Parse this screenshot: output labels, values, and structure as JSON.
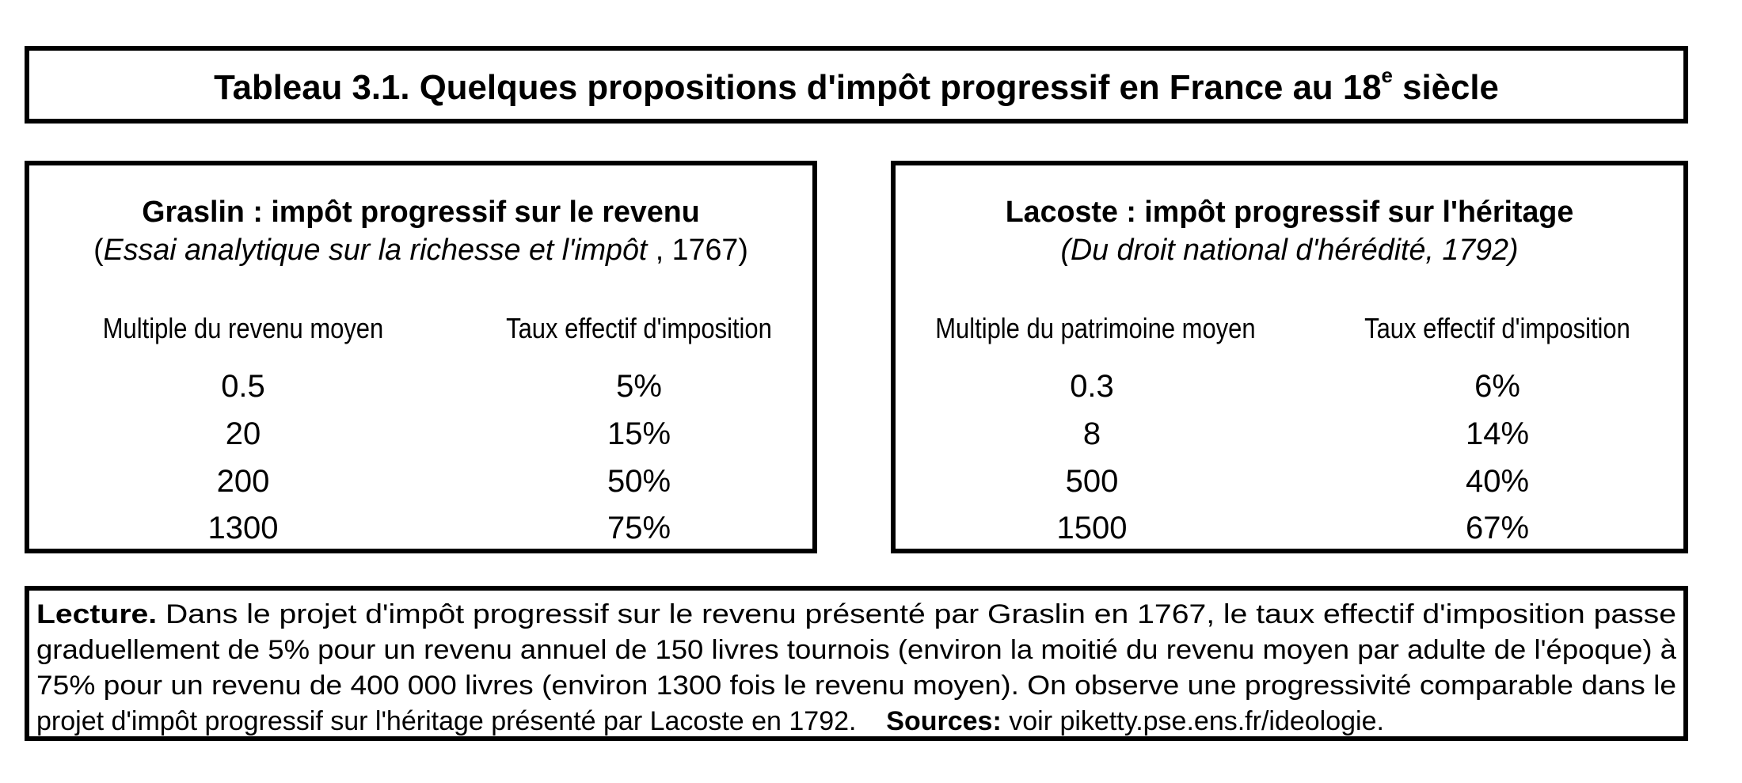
{
  "title": {
    "main": "Tableau 3.1. Quelques propositions d'impôt progressif en France au 18",
    "superscript": "e",
    "end": " siècle"
  },
  "graslin": {
    "heading": "Graslin : impôt progressif sur le revenu",
    "source_open": "(",
    "source_italic": "Essai analytique sur la richesse et l'impôt",
    "source_rest": " , 1767)",
    "col1_header": "Multiple du revenu moyen",
    "col2_header": "Taux effectif d'imposition",
    "rows": [
      {
        "multiple": "0.5",
        "rate": "5%"
      },
      {
        "multiple": "20",
        "rate": "15%"
      },
      {
        "multiple": "200",
        "rate": "50%"
      },
      {
        "multiple": "1300",
        "rate": "75%"
      }
    ]
  },
  "lacoste": {
    "heading": "Lacoste : impôt progressif sur l'héritage",
    "source": "(Du droit national d'hérédité, 1792)",
    "col1_header": "Multiple du patrimoine moyen",
    "col2_header": "Taux effectif d'imposition",
    "rows": [
      {
        "multiple": "0.3",
        "rate": "6%"
      },
      {
        "multiple": "8",
        "rate": "14%"
      },
      {
        "multiple": "500",
        "rate": "40%"
      },
      {
        "multiple": "1500",
        "rate": "67%"
      }
    ]
  },
  "lecture": {
    "label": "Lecture.",
    "line1": " Dans le projet d'impôt progressif sur le revenu présenté par Graslin en 1767, le taux effectif d'imposition passe",
    "line2": "graduellement de 5% pour un revenu annuel de 150 livres tournois (environ la moitié du revenu moyen par adulte de l'époque) à",
    "line3": "75% pour un revenu de 400 000 livres (environ 1300 fois le revenu moyen). On observe une progressivité comparable dans le",
    "line4": "projet d'impôt progressif sur l'héritage présenté par Lacoste en 1792.",
    "sources_label": "Sources:",
    "sources_text": " voir piketty.pse.ens.fr/ideologie."
  }
}
